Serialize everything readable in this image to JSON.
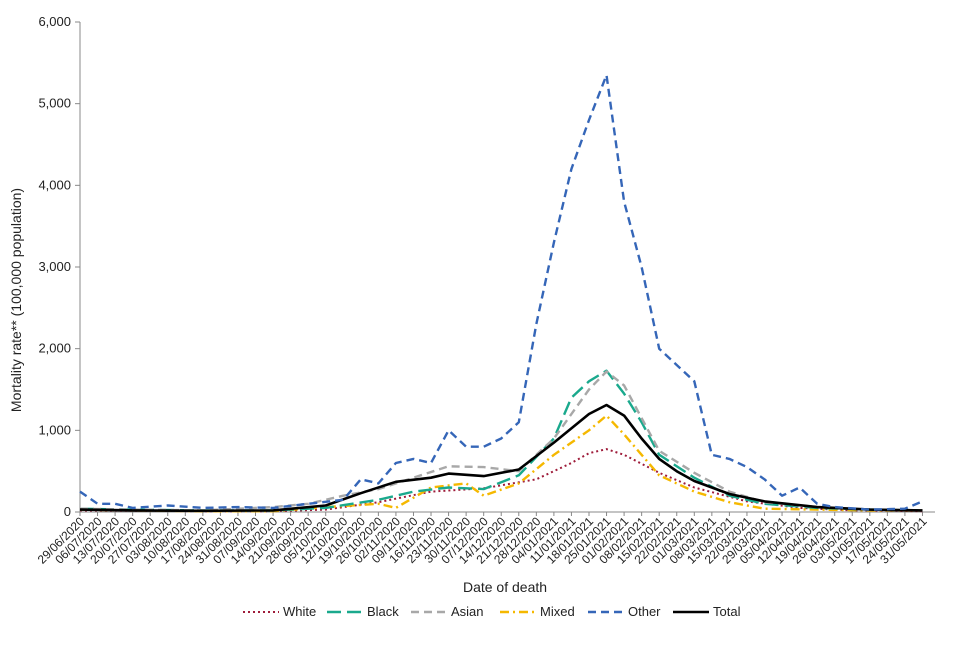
{
  "chart_data": {
    "type": "line",
    "xlabel": "Date of death",
    "ylabel": "Mortality rate** (100,000 population)",
    "ylim": [
      0,
      6000
    ],
    "yticks": [
      "0",
      "1,000",
      "2,000",
      "3,000",
      "4,000",
      "5,000",
      "6,000"
    ],
    "ytick_values": [
      0,
      1000,
      2000,
      3000,
      4000,
      5000,
      6000
    ],
    "x_start": "29/06/2020",
    "x_end": "05/06/2021",
    "x_tick_labels": [
      "29/06/2020",
      "06/07/2020",
      "13/07/2020",
      "20/07/2020",
      "27/07/2020",
      "03/08/2020",
      "10/08/2020",
      "17/08/2020",
      "24/08/2020",
      "31/08/2020",
      "07/09/2020",
      "14/09/2020",
      "21/09/2020",
      "28/09/2020",
      "05/10/2020",
      "12/10/2020",
      "19/10/2020",
      "26/10/2020",
      "02/11/2020",
      "09/11/2020",
      "16/11/2020",
      "23/11/2020",
      "30/11/2020",
      "07/12/2020",
      "14/12/2020",
      "21/12/2020",
      "28/12/2020",
      "04/01/2021",
      "11/01/2021",
      "18/01/2021",
      "25/01/2021",
      "01/02/2021",
      "08/02/2021",
      "15/02/2021",
      "22/02/2021",
      "01/03/2021",
      "08/03/2021",
      "15/03/2021",
      "22/03/2021",
      "29/03/2021",
      "05/04/2021",
      "12/04/2021",
      "19/04/2021",
      "26/04/2021",
      "03/05/2021",
      "10/05/2021",
      "17/05/2021",
      "24/05/2021",
      "31/05/2021"
    ],
    "grid": false,
    "legend_placement": "bottom",
    "series": [
      {
        "name": "White",
        "color": "#9e1c3a",
        "dash": "dotted",
        "x": [
          "29/06/2020",
          "20/07/2020",
          "17/08/2020",
          "14/09/2020",
          "05/10/2020",
          "26/10/2020",
          "16/11/2020",
          "07/12/2020",
          "28/12/2020",
          "11/01/2021",
          "18/01/2021",
          "25/01/2021",
          "01/02/2021",
          "15/02/2021",
          "01/03/2021",
          "22/03/2021",
          "12/04/2021",
          "03/05/2021",
          "31/05/2021"
        ],
        "y": [
          20,
          15,
          10,
          10,
          30,
          120,
          250,
          290,
          400,
          600,
          720,
          770,
          700,
          480,
          300,
          130,
          50,
          20,
          10
        ]
      },
      {
        "name": "Black",
        "color": "#1aa98d",
        "dash": "longdash",
        "x": [
          "29/06/2020",
          "20/07/2020",
          "17/08/2020",
          "14/09/2020",
          "05/10/2020",
          "26/10/2020",
          "09/11/2020",
          "23/11/2020",
          "07/12/2020",
          "21/12/2020",
          "04/01/2021",
          "11/01/2021",
          "18/01/2021",
          "25/01/2021",
          "01/02/2021",
          "08/02/2021",
          "15/02/2021",
          "01/03/2021",
          "15/03/2021",
          "29/03/2021",
          "19/04/2021",
          "10/05/2021",
          "31/05/2021"
        ],
        "y": [
          40,
          30,
          20,
          20,
          50,
          150,
          250,
          300,
          280,
          450,
          900,
          1400,
          1600,
          1730,
          1450,
          1100,
          700,
          420,
          200,
          100,
          50,
          30,
          20
        ]
      },
      {
        "name": "Asian",
        "color": "#a8a8a8",
        "dash": "dashed",
        "x": [
          "29/06/2020",
          "20/07/2020",
          "17/08/2020",
          "14/09/2020",
          "28/09/2020",
          "12/10/2020",
          "26/10/2020",
          "09/11/2020",
          "23/11/2020",
          "07/12/2020",
          "21/12/2020",
          "04/01/2021",
          "18/01/2021",
          "25/01/2021",
          "01/02/2021",
          "08/02/2021",
          "15/02/2021",
          "01/03/2021",
          "15/03/2021",
          "29/03/2021",
          "19/04/2021",
          "10/05/2021",
          "31/05/2021"
        ],
        "y": [
          40,
          30,
          20,
          60,
          100,
          200,
          280,
          420,
          560,
          550,
          500,
          900,
          1500,
          1720,
          1550,
          1150,
          750,
          480,
          250,
          120,
          60,
          30,
          20
        ]
      },
      {
        "name": "Mixed",
        "color": "#f5b800",
        "dash": "dashdot",
        "x": [
          "29/06/2020",
          "20/07/2020",
          "17/08/2020",
          "14/09/2020",
          "05/10/2020",
          "26/10/2020",
          "02/11/2020",
          "16/11/2020",
          "30/11/2020",
          "07/12/2020",
          "21/12/2020",
          "04/01/2021",
          "18/01/2021",
          "25/01/2021",
          "01/02/2021",
          "08/02/2021",
          "15/02/2021",
          "01/03/2021",
          "15/03/2021",
          "29/03/2021",
          "19/04/2021",
          "10/05/2021",
          "31/05/2021"
        ],
        "y": [
          30,
          20,
          10,
          10,
          60,
          100,
          50,
          300,
          350,
          200,
          350,
          700,
          1000,
          1180,
          950,
          700,
          450,
          250,
          120,
          40,
          30,
          20,
          20
        ]
      },
      {
        "name": "Other",
        "color": "#3566b8",
        "dash": "dashed",
        "x": [
          "29/06/2020",
          "06/07/2020",
          "13/07/2020",
          "20/07/2020",
          "03/08/2020",
          "17/08/2020",
          "31/08/2020",
          "14/09/2020",
          "28/09/2020",
          "12/10/2020",
          "19/10/2020",
          "26/10/2020",
          "02/11/2020",
          "09/11/2020",
          "16/11/2020",
          "23/11/2020",
          "30/11/2020",
          "07/12/2020",
          "14/12/2020",
          "21/12/2020",
          "28/12/2020",
          "04/01/2021",
          "11/01/2021",
          "18/01/2021",
          "25/01/2021",
          "01/02/2021",
          "08/02/2021",
          "15/02/2021",
          "22/02/2021",
          "01/03/2021",
          "08/03/2021",
          "15/03/2021",
          "22/03/2021",
          "29/03/2021",
          "05/04/2021",
          "12/04/2021",
          "19/04/2021",
          "26/04/2021",
          "10/05/2021",
          "24/05/2021",
          "31/05/2021"
        ],
        "y": [
          250,
          100,
          100,
          50,
          80,
          50,
          60,
          50,
          100,
          150,
          400,
          350,
          600,
          650,
          600,
          1000,
          800,
          800,
          900,
          1100,
          2300,
          3300,
          4200,
          4800,
          5350,
          3800,
          3000,
          2000,
          1800,
          1600,
          700,
          650,
          550,
          400,
          200,
          300,
          100,
          60,
          30,
          40,
          130
        ]
      },
      {
        "name": "Total",
        "color": "#000000",
        "dash": "solid",
        "x": [
          "29/06/2020",
          "20/07/2020",
          "17/08/2020",
          "14/09/2020",
          "05/10/2020",
          "19/10/2020",
          "02/11/2020",
          "16/11/2020",
          "23/11/2020",
          "07/12/2020",
          "21/12/2020",
          "04/01/2021",
          "18/01/2021",
          "25/01/2021",
          "01/02/2021",
          "08/02/2021",
          "15/02/2021",
          "22/02/2021",
          "01/03/2021",
          "15/03/2021",
          "29/03/2021",
          "19/04/2021",
          "10/05/2021",
          "31/05/2021"
        ],
        "y": [
          30,
          20,
          15,
          20,
          80,
          230,
          370,
          420,
          470,
          440,
          520,
          850,
          1200,
          1310,
          1180,
          900,
          650,
          500,
          380,
          220,
          130,
          60,
          30,
          20
        ]
      }
    ]
  }
}
